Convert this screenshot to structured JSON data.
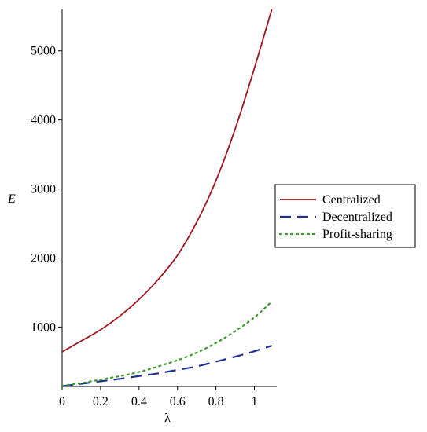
{
  "chart_data": {
    "type": "line",
    "title": "",
    "xlabel": "λ",
    "ylabel": "E",
    "xlim": [
      0,
      1.1
    ],
    "ylim": [
      140,
      5600
    ],
    "x_ticks": [
      0,
      0.2,
      0.4,
      0.6,
      0.8,
      1
    ],
    "x_tick_labels": [
      "0",
      "0.2",
      "0.4",
      "0.6",
      "0.8",
      "1"
    ],
    "y_ticks": [
      1000,
      2000,
      3000,
      4000,
      5000
    ],
    "y_tick_labels": [
      "1000",
      "2000",
      "3000",
      "4000",
      "5000"
    ],
    "grid": false,
    "legend_position": "right",
    "x": [
      0,
      0.1,
      0.2,
      0.3,
      0.4,
      0.5,
      0.6,
      0.7,
      0.8,
      0.9,
      1.0,
      1.09
    ],
    "series": [
      {
        "name": "Centralized",
        "color": "#a0171f",
        "style": "solid",
        "values": [
          640,
          800,
          960,
          1160,
          1400,
          1690,
          2040,
          2520,
          3120,
          3870,
          4750,
          5600
        ]
      },
      {
        "name": "Decentralized",
        "color": "#1f2f8f",
        "style": "dashed",
        "values": [
          145,
          180,
          215,
          250,
          290,
          330,
          380,
          430,
          500,
          570,
          650,
          730
        ]
      },
      {
        "name": "Profit-sharing",
        "color": "#3a9a2a",
        "style": "dotted",
        "values": [
          150,
          190,
          240,
          290,
          350,
          430,
          520,
          630,
          770,
          940,
          1140,
          1370
        ]
      }
    ]
  }
}
